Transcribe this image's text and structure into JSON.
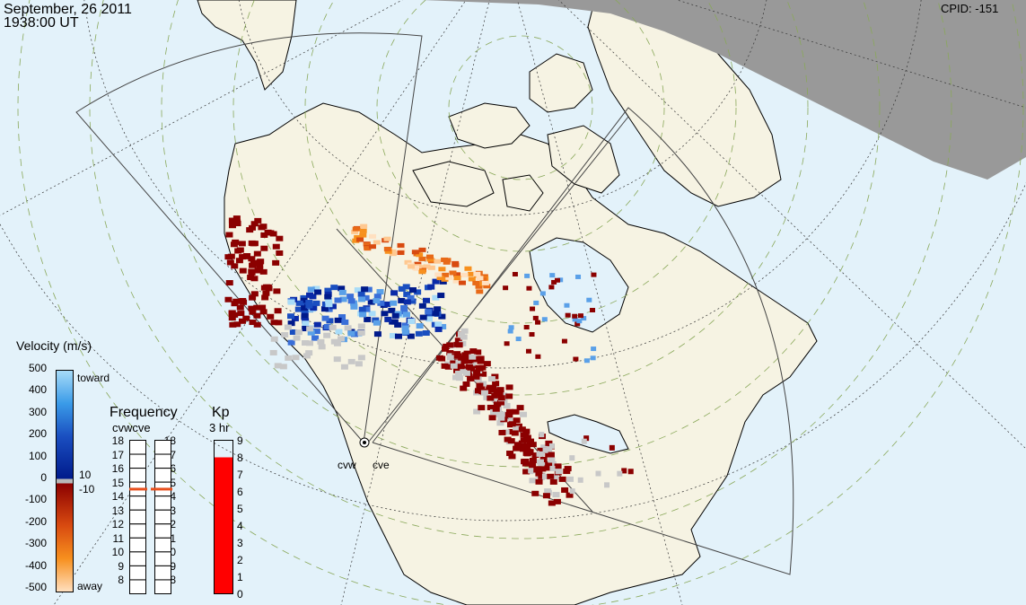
{
  "header": {
    "date": "September, 26 2011",
    "time": "1938:00 UT",
    "cpid": "CPID:  -151"
  },
  "velocity_scale": {
    "title": "Velocity (m/s)",
    "ticks": [
      "500",
      "400",
      "300",
      "200",
      "100",
      "0",
      "-100",
      "-200",
      "-300",
      "-400",
      "-500"
    ],
    "toward_label": "toward",
    "away_label": "away",
    "threshold_pos": "10",
    "threshold_neg": "-10"
  },
  "frequency_panel": {
    "title": "Frequency",
    "stations": "cvwcve",
    "ticks": [
      "18",
      "17",
      "16",
      "15",
      "14",
      "13",
      "12",
      "11",
      "10",
      "9",
      "8"
    ],
    "cvw_mhz": 15.0,
    "cve_mhz": 15.0,
    "marker_color": "#e8501e"
  },
  "kp_panel": {
    "title": "Kp",
    "subtitle": "3 hr",
    "ticks": [
      "9",
      "8",
      "7",
      "6",
      "5",
      "4",
      "3",
      "2",
      "1",
      "0"
    ],
    "value": 8,
    "bar_color": "#ff0000"
  },
  "radars": {
    "cvw_label": "cvw",
    "cve_label": "cve"
  },
  "colors": {
    "ocean": "#e3f2fa",
    "land": "#f6f3e3",
    "night": "#999999",
    "ground_scatter": "#c8c8c8",
    "away_dark": "#8b0000",
    "toward_dark": "#001a8b"
  }
}
